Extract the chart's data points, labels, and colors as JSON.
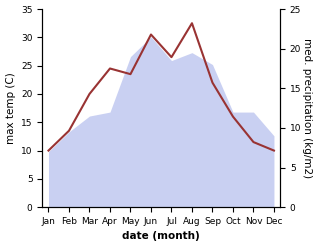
{
  "months": [
    "Jan",
    "Feb",
    "Mar",
    "Apr",
    "May",
    "Jun",
    "Jul",
    "Aug",
    "Sep",
    "Oct",
    "Nov",
    "Dec"
  ],
  "temperature": [
    10.0,
    13.5,
    20.0,
    24.5,
    23.5,
    30.5,
    26.5,
    32.5,
    22.0,
    16.0,
    11.5,
    10.0
  ],
  "precipitation_kg": [
    7.0,
    9.5,
    11.5,
    12.0,
    19.0,
    21.5,
    18.5,
    19.5,
    18.0,
    12.0,
    12.0,
    9.0
  ],
  "temp_color": "#993333",
  "precip_fill_color": "#c0c8f0",
  "temp_ylim": [
    0,
    35
  ],
  "precip_ylim": [
    0,
    25
  ],
  "temp_yticks": [
    0,
    5,
    10,
    15,
    20,
    25,
    30,
    35
  ],
  "precip_yticks": [
    0,
    5,
    10,
    15,
    20,
    25
  ],
  "xlabel": "date (month)",
  "ylabel_left": "max temp (C)",
  "ylabel_right": "med. precipitation (kg/m2)",
  "label_fontsize": 7.5,
  "tick_fontsize": 6.5
}
